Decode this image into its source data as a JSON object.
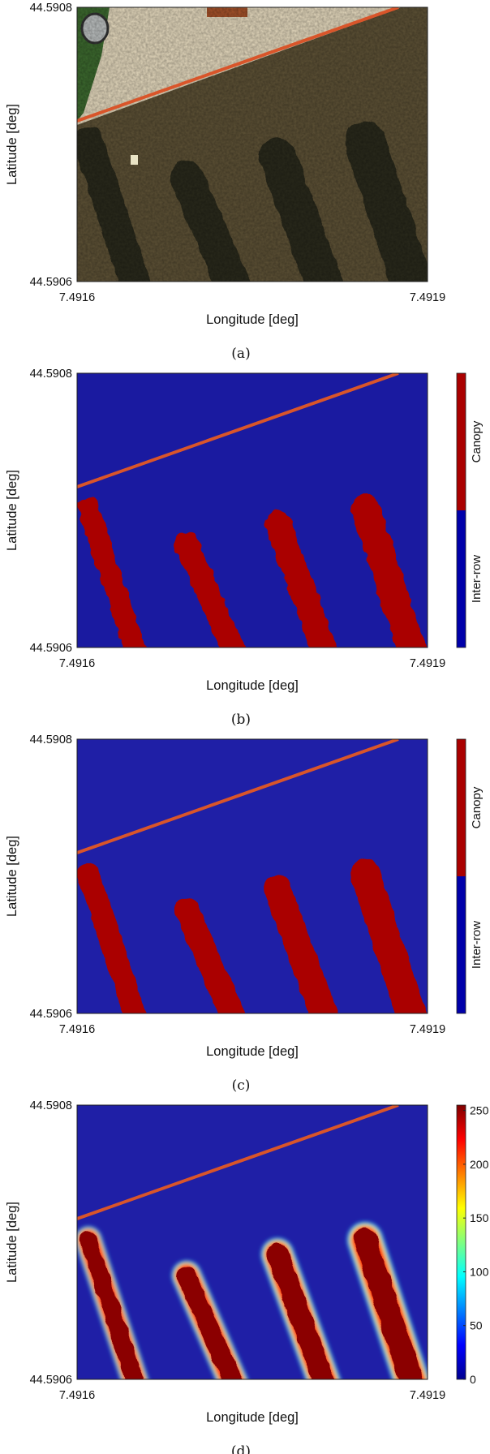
{
  "chart_data": [
    {
      "type": "heatmap",
      "caption": "(a)",
      "xlabel": "Longitude [deg]",
      "ylabel": "Latitude [deg]",
      "xticks": [
        "7.4916",
        "7.4919"
      ],
      "yticks": [
        "44.5908",
        "44.5906"
      ],
      "xlim": [
        7.4916,
        7.4919
      ],
      "ylim": [
        44.5906,
        44.5908
      ],
      "content": "rgb-orthophoto",
      "colors": {
        "soil": "#e8dcc0",
        "grass": "#3d6b2f",
        "canopy": "#2b2a1c",
        "interrow": "#5e5236",
        "track": "#d9552a"
      }
    },
    {
      "type": "heatmap",
      "caption": "(b)",
      "xlabel": "Longitude [deg]",
      "ylabel": "Latitude [deg]",
      "xticks": [
        "7.4916",
        "7.4919"
      ],
      "yticks": [
        "44.5908",
        "44.5906"
      ],
      "xlim": [
        7.4916,
        7.4919
      ],
      "ylim": [
        44.5906,
        44.5908
      ],
      "content": "binary-raw",
      "colorbar": {
        "classes": [
          "Inter-row",
          "Canopy"
        ],
        "colors": [
          "#0000aa",
          "#aa0000"
        ]
      },
      "colors": {
        "background": "#1a1aa0",
        "track": "#d9552a",
        "canopy": "#aa0000"
      }
    },
    {
      "type": "heatmap",
      "caption": "(c)",
      "xlabel": "Longitude [deg]",
      "ylabel": "Latitude [deg]",
      "xticks": [
        "7.4916",
        "7.4919"
      ],
      "yticks": [
        "44.5908",
        "44.5906"
      ],
      "xlim": [
        7.4916,
        7.4919
      ],
      "ylim": [
        44.5906,
        44.5908
      ],
      "content": "binary-filtered",
      "colorbar": {
        "classes": [
          "Inter-row",
          "Canopy"
        ],
        "colors": [
          "#0000aa",
          "#aa0000"
        ]
      },
      "colors": {
        "background": "#1f1fa6",
        "track": "#d9552a",
        "canopy": "#aa0000"
      }
    },
    {
      "type": "heatmap",
      "caption": "(d)",
      "xlabel": "Longitude [deg]",
      "ylabel": "Latitude [deg]",
      "xticks": [
        "7.4916",
        "7.4919"
      ],
      "yticks": [
        "44.5908",
        "44.5906"
      ],
      "xlim": [
        7.4916,
        7.4919
      ],
      "ylim": [
        44.5906,
        44.5908
      ],
      "content": "continuous",
      "colorbar": {
        "range": [
          0,
          255
        ],
        "ticks": [
          "0",
          "50",
          "100",
          "150",
          "200",
          "250"
        ],
        "tick_values": [
          0,
          50,
          100,
          150,
          200,
          250
        ],
        "colormap": "jet"
      },
      "colors": {
        "background": "#1f1fa6",
        "track": "#d9552a",
        "canopy": "#8b0000"
      }
    }
  ],
  "rows": [
    {
      "tips": [
        [
          -6,
          6
        ],
        [
          65,
          38
        ],
        [
          127,
          0
        ],
        [
          185,
          -30
        ],
        [
          248,
          -60
        ],
        [
          310,
          -90
        ],
        [
          370,
          -125
        ]
      ]
    },
    {
      "tips": [
        [
          -12,
          10
        ],
        [
          60,
          25
        ],
        [
          120,
          -6
        ],
        [
          180,
          -40
        ],
        [
          245,
          -68
        ],
        [
          305,
          -100
        ],
        [
          365,
          -130
        ]
      ]
    }
  ]
}
